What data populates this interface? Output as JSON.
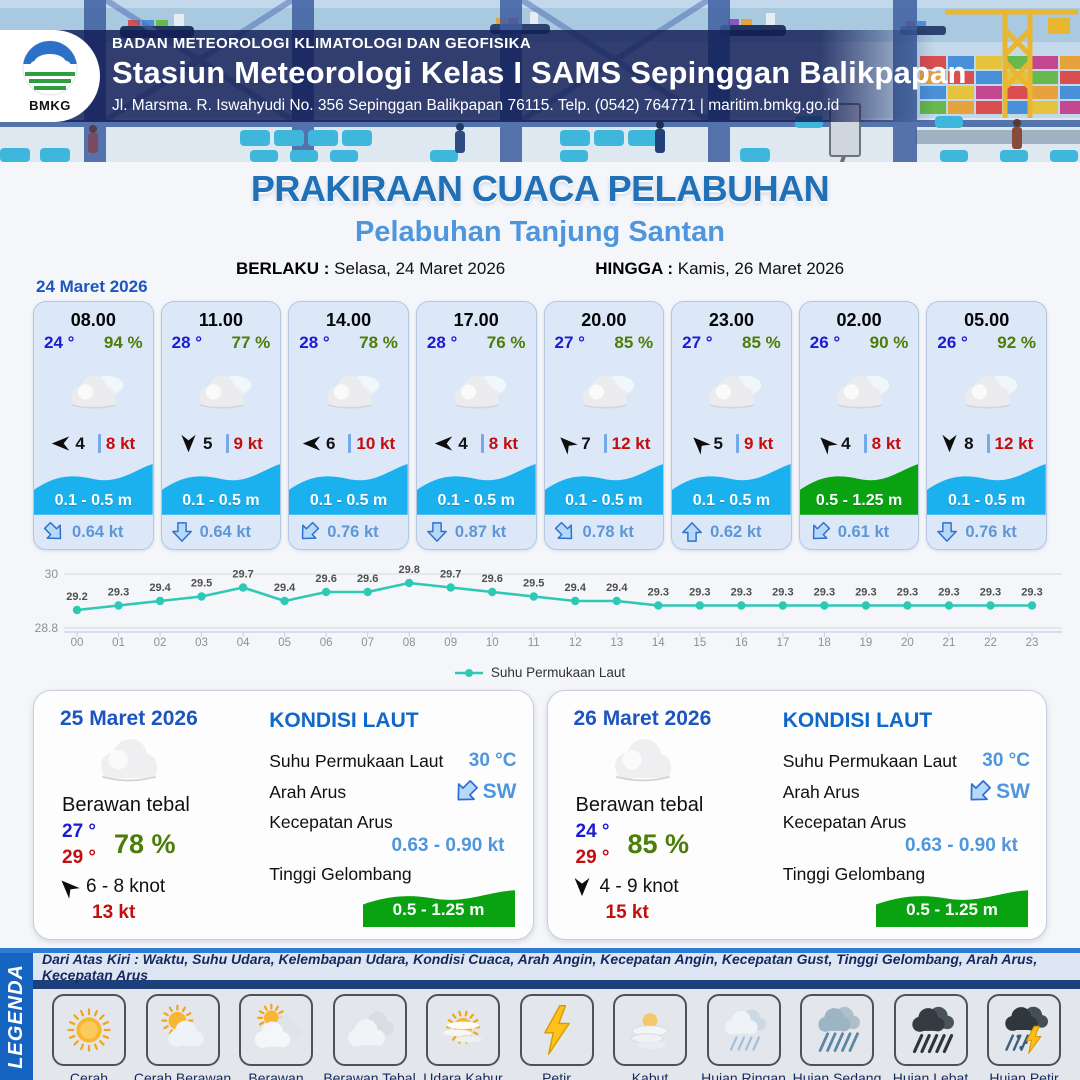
{
  "header": {
    "logo_text": "BMKG",
    "agency": "BADAN METEOROLOGI KLIMATOLOGI DAN GEOFISIKA",
    "station": "Stasiun Meteorologi Kelas I SAMS Sepinggan Balikpapan",
    "address": "Jl. Marsma. R. Iswahyudi No. 356 Sepinggan Balikpapan 76115. Telp. (0542) 764771 | maritim.bmkg.go.id"
  },
  "title": {
    "main": "PRAKIRAAN CUACA PELABUHAN",
    "subtitle": "Pelabuhan Tanjung Santan"
  },
  "validity": {
    "berlaku_label": "BERLAKU :",
    "berlaku_value": "Selasa, 24 Maret 2026",
    "hingga_label": "HINGGA :",
    "hingga_value": "Kamis, 26 Maret 2026",
    "forecast_date": "24 Maret 2026"
  },
  "hourly": {
    "cards": [
      {
        "time": "08.00",
        "temp": "24 °",
        "humidity": "94 %",
        "wind_deg": 270,
        "wind_speed": "4",
        "gust": "8 kt",
        "wave": "0.1 - 0.5 m",
        "wave_level": "low",
        "current_deg": 135,
        "current_speed": "0.64 kt",
        "weather_icon": "cloud"
      },
      {
        "time": "11.00",
        "temp": "28 °",
        "humidity": "77 %",
        "wind_deg": 180,
        "wind_speed": "5",
        "gust": "9 kt",
        "wave": "0.1 - 0.5 m",
        "wave_level": "low",
        "current_deg": 180,
        "current_speed": "0.64 kt",
        "weather_icon": "cloud"
      },
      {
        "time": "14.00",
        "temp": "28 °",
        "humidity": "78 %",
        "wind_deg": 270,
        "wind_speed": "6",
        "gust": "10 kt",
        "wave": "0.1 - 0.5 m",
        "wave_level": "low",
        "current_deg": 225,
        "current_speed": "0.76 kt",
        "weather_icon": "cloud"
      },
      {
        "time": "17.00",
        "temp": "28 °",
        "humidity": "76 %",
        "wind_deg": 270,
        "wind_speed": "4",
        "gust": "8 kt",
        "wave": "0.1 - 0.5 m",
        "wave_level": "low",
        "current_deg": 180,
        "current_speed": "0.87 kt",
        "weather_icon": "cloud"
      },
      {
        "time": "20.00",
        "temp": "27 °",
        "humidity": "85 %",
        "wind_deg": 315,
        "wind_speed": "7",
        "gust": "12 kt",
        "wave": "0.1 - 0.5 m",
        "wave_level": "low",
        "current_deg": 135,
        "current_speed": "0.78 kt",
        "weather_icon": "cloud"
      },
      {
        "time": "23.00",
        "temp": "27 °",
        "humidity": "85 %",
        "wind_deg": 315,
        "wind_speed": "5",
        "gust": "9 kt",
        "wave": "0.1 - 0.5 m",
        "wave_level": "low",
        "current_deg": 0,
        "current_speed": "0.62 kt",
        "weather_icon": "cloud"
      },
      {
        "time": "02.00",
        "temp": "26 °",
        "humidity": "90 %",
        "wind_deg": 315,
        "wind_speed": "4",
        "gust": "8 kt",
        "wave": "0.5 - 1.25 m",
        "wave_level": "moderate",
        "current_deg": 225,
        "current_speed": "0.61 kt",
        "weather_icon": "cloud"
      },
      {
        "time": "05.00",
        "temp": "26 °",
        "humidity": "92 %",
        "wind_deg": 180,
        "wind_speed": "8",
        "gust": "12 kt",
        "wave": "0.1 - 0.5 m",
        "wave_level": "low",
        "current_deg": 180,
        "current_speed": "0.76 kt",
        "weather_icon": "cloud"
      }
    ]
  },
  "chart_data": {
    "type": "line",
    "x": [
      "00",
      "01",
      "02",
      "03",
      "04",
      "05",
      "06",
      "07",
      "08",
      "09",
      "10",
      "11",
      "12",
      "13",
      "14",
      "15",
      "16",
      "17",
      "18",
      "19",
      "20",
      "21",
      "22",
      "23"
    ],
    "series": [
      {
        "name": "Suhu Permukaan Laut",
        "color": "#2ec9b5",
        "values": [
          29.2,
          29.3,
          29.4,
          29.5,
          29.7,
          29.4,
          29.6,
          29.6,
          29.8,
          29.7,
          29.6,
          29.5,
          29.4,
          29.4,
          29.3,
          29.3,
          29.3,
          29.3,
          29.3,
          29.3,
          29.3,
          29.3,
          29.3,
          29.3
        ]
      }
    ],
    "ylim": [
      28.8,
      30
    ],
    "yticks": [
      28.8,
      30
    ],
    "grid": true,
    "legend_position": "bottom"
  },
  "daily_labels": {
    "kondisi_title": "KONDISI LAUT",
    "sst": "Suhu Permukaan Laut",
    "arah": "Arah Arus",
    "kecepatan": "Kecepatan Arus",
    "tinggi": "Tinggi Gelombang"
  },
  "daily": [
    {
      "date": "25 Maret 2026",
      "condition": "Berawan tebal",
      "temp_min": "27 °",
      "temp_max": "29 °",
      "humidity": "78 %",
      "wind_deg": 315,
      "wind_range": "6  - 8 knot",
      "gust": "13 kt",
      "sst": "30 °C",
      "current_dir": "SW",
      "current_deg": 225,
      "current_speed": "0.63  - 0.90 kt",
      "wave": "0.5 - 1.25 m",
      "weather_icon": "cloud"
    },
    {
      "date": "26 Maret 2026",
      "condition": "Berawan tebal",
      "temp_min": "24 °",
      "temp_max": "29 °",
      "humidity": "85 %",
      "wind_deg": 180,
      "wind_range": "4  - 9 knot",
      "gust": "15 kt",
      "sst": "30 °C",
      "current_dir": "SW",
      "current_deg": 225,
      "current_speed": "0.63  - 0.90 kt",
      "wave": "0.5 - 1.25 m",
      "weather_icon": "cloud"
    }
  ],
  "legend": {
    "title": "LEGENDA",
    "note": "Dari Atas Kiri : Waktu, Suhu Udara, Kelembapan Udara, Kondisi Cuaca, Arah Angin, Kecepatan Angin, Kecepatan Gust, Tinggi Gelombang, Arah Arus, Kecepatan Arus",
    "items": [
      {
        "label": "Cerah",
        "icon": "sun"
      },
      {
        "label": "Cerah Berawan",
        "icon": "sun-cloud"
      },
      {
        "label": "Berawan",
        "icon": "cloud-sun"
      },
      {
        "label": "Berawan Tebal",
        "icon": "clouds"
      },
      {
        "label": "Udara Kabur",
        "icon": "haze-sun"
      },
      {
        "label": "Petir",
        "icon": "lightning"
      },
      {
        "label": "Kabut",
        "icon": "fog"
      },
      {
        "label": "Hujan Ringan",
        "icon": "rain-light"
      },
      {
        "label": "Hujan Sedang",
        "icon": "rain-medium"
      },
      {
        "label": "Hujan Lebat",
        "icon": "rain-heavy"
      },
      {
        "label": "Hujan Petir",
        "icon": "rain-thunder"
      }
    ]
  },
  "colors": {
    "title_blue": "#2070b8",
    "subtitle_blue": "#4f96dd",
    "temp_blue": "#1b1bd1",
    "humidity_green": "#4b7d07",
    "gust_red": "#c40d0d",
    "wave_low_blue": "#1ab1ee",
    "wave_moderate_green": "#09a312",
    "chart_teal": "#2ec9b5",
    "legend_strip_blue": "#1565c0"
  }
}
